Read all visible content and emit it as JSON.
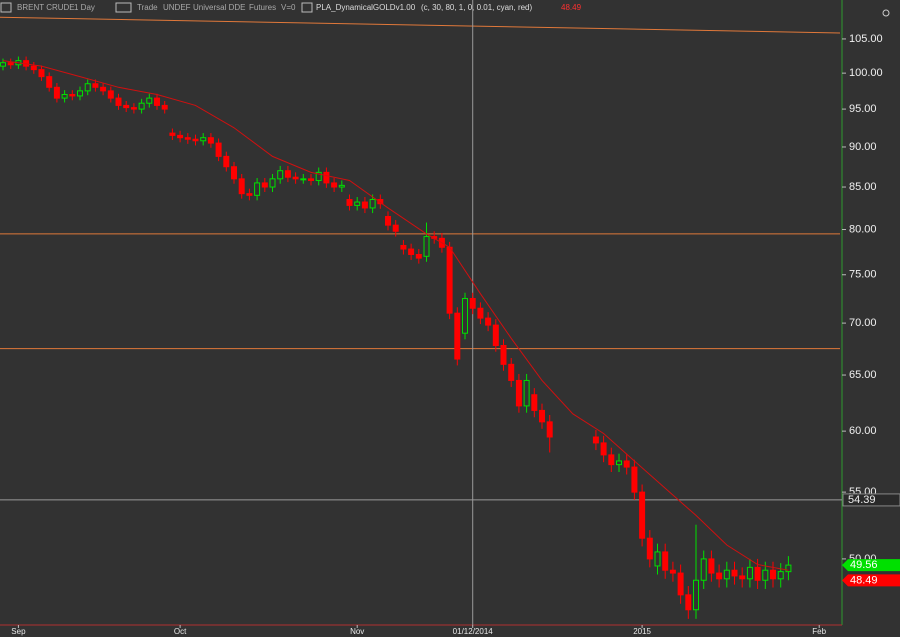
{
  "header": {
    "symbol": "BRENT CRUDE",
    "period": "1 Day",
    "mode": "Trade",
    "account": "UNDEF",
    "source": "Universal DDE",
    "market": "Futures",
    "volume": "V=0",
    "indicator": "PLA_DynamicalGOLDv1.00",
    "params": "(c, 30, 80, 1, 0, 0.01, cyan, red)"
  },
  "chart_data": {
    "type": "candlestick",
    "log_scale": true,
    "up_color": "#00e000",
    "down_color": "#ff0000",
    "ma_color": "#d01010",
    "level_color": "#e0783a",
    "crosshair_color": "#9a9a9a",
    "open": [
      101.0,
      101.5,
      101.2,
      101.8,
      101.0,
      100.5,
      99.5,
      98.0,
      96.5,
      97.0,
      96.8,
      97.5,
      98.5,
      98.0,
      97.5,
      96.5,
      95.5,
      95.2,
      95.0,
      95.8,
      96.5,
      95.5,
      91.8,
      91.5,
      91.2,
      91.0,
      90.8,
      91.2,
      90.5,
      88.8,
      87.5,
      86.0,
      84.2,
      84.0,
      85.5,
      85.0,
      86.0,
      87.0,
      86.2,
      86.0,
      86.0,
      85.8,
      86.8,
      85.5,
      85.0,
      83.5,
      82.8,
      83.2,
      82.5,
      83.5,
      81.5,
      80.5,
      78.2,
      77.8,
      77.2,
      77.0,
      79.2,
      79.0,
      78.0,
      71.0,
      69.0,
      72.5,
      71.5,
      70.5,
      69.8,
      67.8,
      66.0,
      64.5,
      62.2,
      63.2,
      61.8,
      60.8,
      null,
      null,
      null,
      null,
      null,
      59.5,
      59.0,
      58.0,
      57.2,
      57.5,
      57.0,
      55.0,
      51.5,
      49.5,
      50.5,
      49.2,
      49.0,
      47.5,
      46.5,
      48.5,
      50.0,
      49.0,
      48.6,
      49.2,
      48.8,
      48.6,
      49.4,
      48.5,
      49.2,
      48.6,
      49.1
    ],
    "high": [
      102.1,
      102.1,
      102.4,
      102.4,
      101.6,
      101.1,
      100.1,
      98.6,
      97.6,
      97.6,
      98.1,
      99.1,
      99.1,
      98.6,
      98.1,
      97.1,
      96.1,
      95.8,
      96.4,
      97.1,
      97.1,
      96.1,
      92.4,
      92.1,
      91.8,
      91.6,
      91.8,
      91.8,
      91.1,
      89.4,
      88.1,
      86.6,
      84.8,
      86.1,
      86.1,
      86.6,
      87.6,
      87.6,
      86.8,
      86.6,
      86.6,
      87.4,
      87.4,
      86.1,
      85.8,
      84.1,
      83.8,
      83.8,
      84.1,
      84.1,
      82.1,
      81.1,
      78.8,
      78.4,
      77.8,
      80.8,
      79.8,
      79.6,
      78.6,
      71.6,
      73.1,
      73.1,
      72.1,
      71.1,
      70.4,
      68.4,
      66.6,
      65.1,
      65.1,
      63.8,
      62.4,
      61.4,
      null,
      null,
      null,
      null,
      null,
      60.1,
      59.6,
      58.6,
      58.1,
      58.1,
      57.6,
      55.6,
      52.1,
      51.1,
      51.1,
      49.8,
      49.6,
      48.1,
      52.5,
      50.6,
      50.6,
      49.6,
      49.8,
      49.8,
      49.4,
      50.0,
      50.0,
      49.8,
      49.8,
      49.7,
      50.2
    ],
    "low": [
      100.4,
      100.6,
      100.6,
      100.4,
      99.9,
      98.9,
      97.4,
      95.9,
      95.9,
      96.2,
      96.2,
      96.9,
      97.4,
      96.9,
      95.9,
      94.9,
      94.6,
      94.4,
      94.4,
      95.2,
      94.9,
      94.4,
      90.9,
      90.6,
      90.4,
      90.2,
      90.2,
      89.9,
      88.2,
      86.9,
      85.4,
      83.6,
      83.4,
      83.4,
      84.4,
      84.4,
      85.4,
      85.6,
      85.4,
      85.4,
      85.2,
      85.2,
      84.9,
      84.4,
      84.4,
      82.2,
      82.2,
      81.9,
      81.9,
      82.4,
      79.9,
      79.2,
      77.2,
      76.6,
      76.2,
      76.4,
      78.4,
      77.4,
      70.4,
      65.9,
      68.4,
      70.9,
      69.9,
      69.2,
      67.2,
      65.4,
      63.9,
      61.6,
      61.6,
      61.2,
      60.2,
      58.2,
      null,
      null,
      null,
      null,
      null,
      58.4,
      57.4,
      56.6,
      56.6,
      56.4,
      54.4,
      50.9,
      49.4,
      48.9,
      48.6,
      48.4,
      46.9,
      45.9,
      45.9,
      47.9,
      48.4,
      48.0,
      48.0,
      48.2,
      48.0,
      48.0,
      47.9,
      47.9,
      48.0,
      48.0,
      48.5
    ],
    "close": [
      101.5,
      101.2,
      101.8,
      101.0,
      100.5,
      99.5,
      98.0,
      96.5,
      97.0,
      96.8,
      97.5,
      98.5,
      98.0,
      97.5,
      96.5,
      95.5,
      95.2,
      95.0,
      95.8,
      96.5,
      95.5,
      95.0,
      91.5,
      91.2,
      91.0,
      90.8,
      91.2,
      90.5,
      88.8,
      87.5,
      86.0,
      84.2,
      84.0,
      85.5,
      85.0,
      86.0,
      87.0,
      86.2,
      86.0,
      86.0,
      85.8,
      86.8,
      85.5,
      85.0,
      85.2,
      82.8,
      83.2,
      82.5,
      83.5,
      83.0,
      80.5,
      79.8,
      77.8,
      77.2,
      76.8,
      79.2,
      79.0,
      78.0,
      71.0,
      66.5,
      72.5,
      71.5,
      70.5,
      69.8,
      67.8,
      66.0,
      64.5,
      62.2,
      64.5,
      61.8,
      60.8,
      59.5,
      null,
      null,
      null,
      null,
      null,
      59.0,
      58.0,
      57.2,
      57.5,
      57.0,
      55.0,
      51.5,
      50.0,
      50.5,
      49.2,
      49.0,
      47.5,
      46.5,
      48.5,
      50.0,
      49.0,
      48.6,
      49.2,
      48.8,
      48.6,
      49.4,
      48.5,
      49.2,
      48.6,
      49.1,
      49.56
    ],
    "ma": {
      "x": [
        0,
        5,
        10,
        15,
        20,
        25,
        30,
        35,
        40,
        45,
        50,
        55,
        58,
        62,
        66,
        70,
        74,
        78,
        82,
        86,
        90,
        94,
        98,
        102
      ],
      "values": [
        101.8,
        101.0,
        99.5,
        98.0,
        97.0,
        95.5,
        92.5,
        88.8,
        86.8,
        85.8,
        82.5,
        79.5,
        78.0,
        73.0,
        68.5,
        64.5,
        61.5,
        59.8,
        57.5,
        55.3,
        53.2,
        51.0,
        49.6,
        49.2
      ]
    },
    "indicator_value": 48.49,
    "trend_line": [
      108.3,
      105.9
    ],
    "levels": [
      79.5,
      67.5
    ],
    "crosshair": {
      "x": 61,
      "y": 54.39
    },
    "xlim": [
      -0.39,
      108.7
    ],
    "xticks": [
      {
        "value": 2,
        "label": "Sep"
      },
      {
        "value": 23,
        "label": "Oct"
      },
      {
        "value": 46,
        "label": "Nov"
      },
      {
        "value": 61,
        "label": "01/12/2014"
      },
      {
        "value": 83,
        "label": "2015"
      },
      {
        "value": 106,
        "label": "Feb"
      }
    ],
    "ylim": [
      45.5,
      111
    ],
    "yticks": [
      {
        "value": 50,
        "label": "50.00"
      },
      {
        "value": 55,
        "label": "55.00"
      },
      {
        "value": 60,
        "label": "60.00"
      },
      {
        "value": 65,
        "label": "65.00"
      },
      {
        "value": 70,
        "label": "70.00"
      },
      {
        "value": 75,
        "label": "75.00"
      },
      {
        "value": 80,
        "label": "80.00"
      },
      {
        "value": 85,
        "label": "85.00"
      },
      {
        "value": 90,
        "label": "90.00"
      },
      {
        "value": 95,
        "label": "95.00"
      },
      {
        "value": 100,
        "label": "100.00"
      },
      {
        "value": 105,
        "label": "105.00"
      }
    ]
  }
}
